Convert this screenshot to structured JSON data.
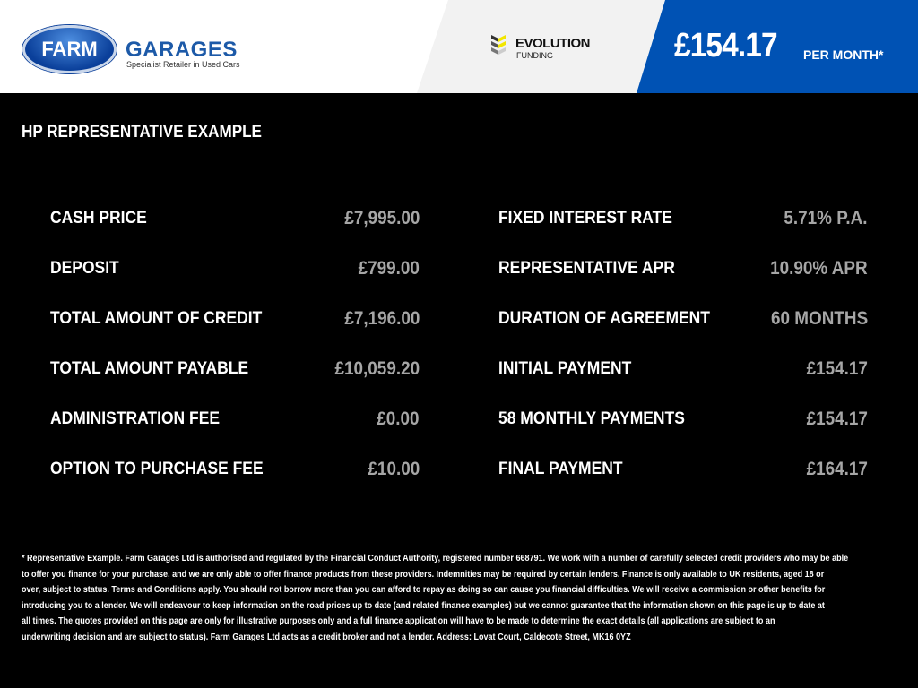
{
  "header": {
    "farm_logo_word": "FARM",
    "garages_word": "GARAGES",
    "tagline": "Specialist Retailer in Used Cars",
    "funder_title": "EVOLUTION",
    "funder_sub": "FUNDING",
    "monthly_price": "£154.17",
    "per_month": "PER MONTH*",
    "colors": {
      "brand_blue": "#0052b4",
      "value_grey": "#a6a6a6"
    }
  },
  "title": "HP REPRESENTATIVE EXAMPLE",
  "left_rows": [
    {
      "label": "CASH PRICE",
      "value": "£7,995.00"
    },
    {
      "label": "DEPOSIT",
      "value": "£799.00"
    },
    {
      "label": "TOTAL AMOUNT OF CREDIT",
      "value": "£7,196.00"
    },
    {
      "label": "TOTAL AMOUNT PAYABLE",
      "value": "£10,059.20"
    },
    {
      "label": "ADMINISTRATION FEE",
      "value": "£0.00"
    },
    {
      "label": "OPTION TO PURCHASE FEE",
      "value": "£10.00"
    }
  ],
  "right_rows": [
    {
      "label": "FIXED INTEREST RATE",
      "value": "5.71% P.A."
    },
    {
      "label": "REPRESENTATIVE APR",
      "value": "10.90% APR"
    },
    {
      "label": "DURATION OF AGREEMENT",
      "value": "60 MONTHS"
    },
    {
      "label": "INITIAL PAYMENT",
      "value": "£154.17"
    },
    {
      "label": "58 MONTHLY PAYMENTS",
      "value": "£154.17"
    },
    {
      "label": "FINAL PAYMENT",
      "value": "£164.17"
    }
  ],
  "footer_lines": [
    "* Representative Example. Farm Garages Ltd is authorised and regulated by the Financial Conduct Authority, registered number 668791. We work with a number of carefully selected credit providers who may be able",
    "to offer you finance for your purchase, and we are only able to offer finance products from these providers. Indemnities may be required by certain lenders. Finance is only available to UK residents, aged 18 or",
    "over, subject to status. Terms and Conditions apply. You should not borrow more than you can afford to repay as doing so can cause you financial difficulties. We will receive a commission or other benefits for",
    "introducing you to a lender. We will endeavour to keep information on the road prices up to date (and related finance examples) but we cannot guarantee that the information shown on this page is up to date at",
    "all times. The quotes provided on this page are only for illustrative purposes only and a full finance application will have to be made to determine the exact details (all applications are subject to an",
    "underwriting decision and are subject to status). Farm Garages Ltd acts as a credit broker and not a lender. Address: Lovat Court, Caldecote Street, MK16 0YZ"
  ]
}
